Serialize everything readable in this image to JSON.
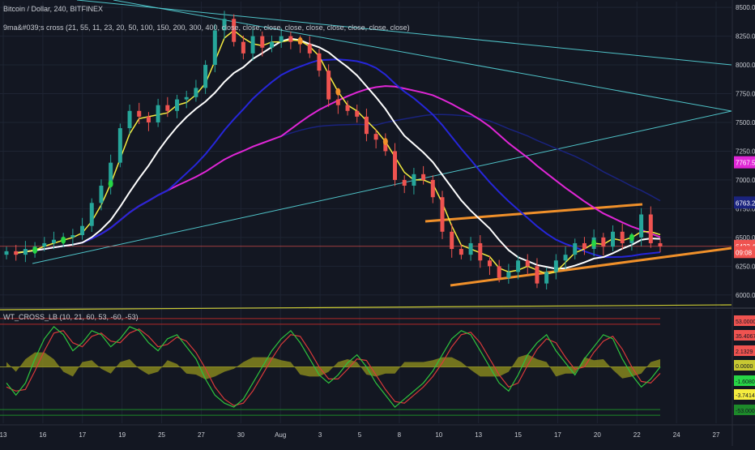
{
  "header": {
    "symbol_title": "Bitcoin / Dollar, 240, BITFINEX",
    "ma_indicator_label": "9ma&#039;s cross (21, 55, 11, 23, 20, 50, 100, 150, 200, 300, 400, close, close, close, close, close, close, close, close, close)"
  },
  "oscillator": {
    "label": "WT_CROSS_LB (10, 21, 60, 53, -60, -53)"
  },
  "colors": {
    "background": "#131722",
    "up_candle": "#26a69a",
    "down_candle": "#ef5350",
    "ma_yellow": "#f5ec3f",
    "ma_white": "#ffffff",
    "ma_blue": "#2626d9",
    "ma_navy": "#1a237e",
    "ma_magenta": "#e026d6",
    "trend_cyan": "#4fc3c8",
    "channel_orange": "#f0902a",
    "signal_green": "#27d646",
    "signal_orange": "#f0902a"
  },
  "chart_data": [
    {
      "type": "candlestick",
      "title": "Bitcoin / Dollar, 240, BITFINEX",
      "price_axis_ticks": [
        "8500.0",
        "8250.0",
        "8000.0",
        "7750.0",
        "7500.0",
        "7250.0",
        "7000.0",
        "6750.0",
        "6500.0",
        "6250.0",
        "6000.0"
      ],
      "price_badges": [
        {
          "text": "7767.5",
          "color": "#e026d6"
        },
        {
          "text": "6763.2",
          "color": "#1a237e"
        },
        {
          "text": "6423.4",
          "color": "#ef5350"
        },
        {
          "text": "09:08",
          "color": "#ef5350"
        }
      ],
      "time_axis_ticks": [
        "13",
        "16",
        "17",
        "19",
        "25",
        "27",
        "30",
        "Aug",
        "3",
        "5",
        "8",
        "10",
        "13",
        "15",
        "17",
        "20",
        "22",
        "24",
        "27"
      ],
      "ylim": [
        5900,
        8550
      ],
      "close_prices": [
        6380,
        6350,
        6400,
        6420,
        6450,
        6480,
        6500,
        6520,
        6600,
        6800,
        6950,
        7150,
        7450,
        7600,
        7550,
        7500,
        7650,
        7600,
        7700,
        7720,
        7800,
        8000,
        8300,
        8400,
        8200,
        8100,
        8250,
        8150,
        8200,
        8250,
        8200,
        8180,
        8100,
        7950,
        7700,
        7650,
        7600,
        7550,
        7400,
        7350,
        7250,
        7000,
        6950,
        7050,
        7000,
        6850,
        6550,
        6400,
        6350,
        6450,
        6300,
        6250,
        6150,
        6200,
        6300,
        6250,
        6100,
        6200,
        6300,
        6350,
        6450,
        6400,
        6500,
        6420,
        6550,
        6450,
        6500,
        6700,
        6450,
        6423
      ]
    },
    {
      "type": "line",
      "title": "WT_CROSS_LB (10, 21, 60, 53, -60, -53)",
      "value_axis_ticks": [
        "53.0000",
        "35.4067",
        "2.1329",
        "0.0000",
        "-1.6080",
        "-3.7414",
        "-53.0000"
      ],
      "ylim": [
        -70,
        70
      ],
      "reference_levels": [
        60,
        53,
        0,
        -53,
        -60
      ],
      "series": [
        {
          "values": [
            -20,
            -35,
            -20,
            10,
            35,
            50,
            40,
            20,
            30,
            45,
            40,
            25,
            35,
            50,
            45,
            30,
            20,
            35,
            40,
            25,
            10,
            -15,
            -35,
            -45,
            -50,
            -40,
            -20,
            0,
            20,
            35,
            45,
            30,
            10,
            -10,
            -20,
            -10,
            5,
            15,
            0,
            -20,
            -35,
            -50,
            -40,
            -30,
            -20,
            -5,
            15,
            35,
            45,
            40,
            20,
            0,
            -20,
            -30,
            -10,
            15,
            30,
            40,
            20,
            5,
            -10,
            10,
            25,
            40,
            35,
            10,
            -10,
            -25,
            -15,
            0
          ]
        },
        {
          "values": [
            -25,
            -30,
            -28,
            -5,
            20,
            42,
            45,
            30,
            25,
            38,
            42,
            32,
            30,
            42,
            47,
            38,
            25,
            28,
            37,
            32,
            18,
            -2,
            -25,
            -40,
            -48,
            -45,
            -30,
            -10,
            10,
            28,
            40,
            38,
            20,
            0,
            -15,
            -15,
            -3,
            10,
            8,
            -10,
            -28,
            -43,
            -45,
            -35,
            -25,
            -12,
            5,
            25,
            40,
            43,
            30,
            10,
            -10,
            -25,
            -20,
            2,
            22,
            35,
            30,
            12,
            -3,
            0,
            18,
            32,
            38,
            22,
            0,
            -18,
            -20,
            -8
          ]
        }
      ]
    }
  ]
}
